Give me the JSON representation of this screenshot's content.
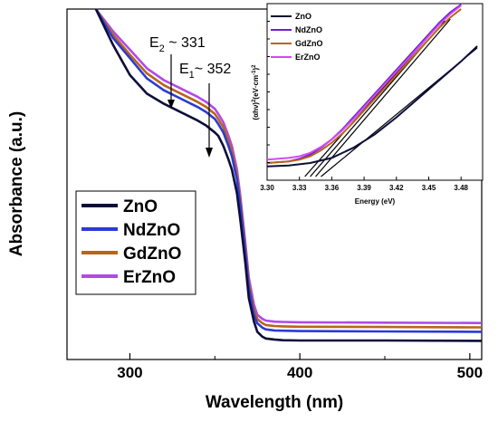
{
  "chart_data": [
    {
      "type": "line",
      "xlabel": "Wavelength (nm)",
      "ylabel": "Absorbance (a.u.)",
      "xlim": [
        263,
        507
      ],
      "ylim": [
        0,
        1
      ],
      "xticks": [
        "300",
        "400",
        "500"
      ],
      "y_tick_labels_shown": false,
      "legend_position": "bottom-left",
      "series": [
        {
          "name": "ZnO",
          "color": "#0d0d3a",
          "x": [
            280,
            290,
            300,
            310,
            320,
            330,
            340,
            345,
            350,
            352,
            355,
            358,
            360,
            363,
            365,
            368,
            370,
            373,
            375,
            378,
            380,
            385,
            390,
            400,
            450,
            507
          ],
          "y": [
            1.01,
            0.9,
            0.81,
            0.755,
            0.725,
            0.7,
            0.675,
            0.66,
            0.64,
            0.63,
            0.6,
            0.56,
            0.53,
            0.46,
            0.38,
            0.25,
            0.15,
            0.08,
            0.05,
            0.035,
            0.03,
            0.027,
            0.025,
            0.024,
            0.024,
            0.023
          ]
        },
        {
          "name": "NdZnO",
          "color": "#2b3bd6",
          "x": [
            280,
            290,
            300,
            310,
            320,
            330,
            340,
            345,
            350,
            352,
            355,
            358,
            360,
            363,
            365,
            368,
            370,
            373,
            375,
            378,
            380,
            385,
            390,
            400,
            450,
            507
          ],
          "y": [
            1.01,
            0.92,
            0.86,
            0.8,
            0.765,
            0.74,
            0.715,
            0.7,
            0.68,
            0.665,
            0.64,
            0.6,
            0.57,
            0.5,
            0.42,
            0.28,
            0.18,
            0.1,
            0.075,
            0.062,
            0.057,
            0.054,
            0.053,
            0.052,
            0.051,
            0.05
          ]
        },
        {
          "name": "GdZnO",
          "color": "#b8651a",
          "x": [
            280,
            290,
            300,
            310,
            320,
            330,
            340,
            345,
            350,
            352,
            355,
            358,
            360,
            363,
            365,
            368,
            370,
            373,
            375,
            378,
            380,
            385,
            390,
            400,
            450,
            507
          ],
          "y": [
            1.01,
            0.93,
            0.87,
            0.815,
            0.78,
            0.755,
            0.73,
            0.715,
            0.695,
            0.68,
            0.655,
            0.615,
            0.585,
            0.515,
            0.435,
            0.295,
            0.195,
            0.115,
            0.088,
            0.075,
            0.07,
            0.067,
            0.066,
            0.065,
            0.064,
            0.063
          ]
        },
        {
          "name": "ErZnO",
          "color": "#b04ae6",
          "x": [
            280,
            290,
            300,
            310,
            320,
            330,
            340,
            345,
            350,
            352,
            355,
            358,
            360,
            363,
            365,
            368,
            370,
            373,
            375,
            378,
            380,
            385,
            390,
            400,
            450,
            507
          ],
          "y": [
            1.01,
            0.94,
            0.885,
            0.83,
            0.795,
            0.77,
            0.745,
            0.73,
            0.71,
            0.695,
            0.67,
            0.63,
            0.6,
            0.53,
            0.45,
            0.31,
            0.21,
            0.13,
            0.1,
            0.088,
            0.083,
            0.08,
            0.079,
            0.078,
            0.077,
            0.076
          ]
        }
      ],
      "annotations": [
        {
          "label_main": "E",
          "label_sub": "2",
          "label_rest": " ~ 331",
          "x": 331,
          "y": 0.7
        },
        {
          "label_main": "E",
          "label_sub": "1",
          "label_rest": "~ 352",
          "x": 352,
          "y": 0.63
        }
      ]
    },
    {
      "type": "line",
      "xlabel": "Energy (eV)",
      "ylabel_parts": [
        "(αhν)",
        "2",
        "(eV·cm",
        "-1",
        ")",
        "2"
      ],
      "xlim": [
        3.3,
        3.5
      ],
      "ylim": [
        0,
        1
      ],
      "xticks": [
        "3.30",
        "3.33",
        "3.36",
        "3.39",
        "3.42",
        "3.45",
        "3.48"
      ],
      "xtick_values": [
        3.3,
        3.33,
        3.36,
        3.39,
        3.42,
        3.45,
        3.48
      ],
      "legend_position": "top-left",
      "series": [
        {
          "name": "ZnO",
          "color": "#0d0d3a",
          "x": [
            3.3,
            3.32,
            3.34,
            3.36,
            3.38,
            3.4,
            3.42,
            3.44,
            3.46,
            3.48,
            3.495
          ],
          "y": [
            0.06,
            0.065,
            0.08,
            0.11,
            0.17,
            0.25,
            0.35,
            0.46,
            0.57,
            0.68,
            0.77
          ]
        },
        {
          "name": "NdZnO",
          "color": "#6b1fd6",
          "x": [
            3.3,
            3.32,
            3.33,
            3.34,
            3.35,
            3.36,
            3.37,
            3.38,
            3.39,
            3.4,
            3.41,
            3.42,
            3.43,
            3.44,
            3.45,
            3.46,
            3.47,
            3.48
          ],
          "y": [
            0.08,
            0.09,
            0.105,
            0.13,
            0.17,
            0.22,
            0.28,
            0.35,
            0.42,
            0.49,
            0.56,
            0.63,
            0.7,
            0.77,
            0.84,
            0.91,
            0.97,
            1.02
          ]
        },
        {
          "name": "GdZnO",
          "color": "#b8651a",
          "x": [
            3.3,
            3.32,
            3.33,
            3.34,
            3.35,
            3.36,
            3.37,
            3.38,
            3.39,
            3.4,
            3.41,
            3.42,
            3.43,
            3.44,
            3.45,
            3.46,
            3.47,
            3.48
          ],
          "y": [
            0.08,
            0.09,
            0.1,
            0.12,
            0.155,
            0.2,
            0.255,
            0.32,
            0.39,
            0.46,
            0.53,
            0.6,
            0.67,
            0.74,
            0.81,
            0.88,
            0.94,
            0.99
          ]
        },
        {
          "name": "ErZnO",
          "color": "#d24af0",
          "x": [
            3.3,
            3.32,
            3.33,
            3.34,
            3.35,
            3.36,
            3.37,
            3.38,
            3.39,
            3.4,
            3.41,
            3.42,
            3.43,
            3.44,
            3.45,
            3.46,
            3.47,
            3.48
          ],
          "y": [
            0.1,
            0.11,
            0.12,
            0.14,
            0.175,
            0.22,
            0.275,
            0.34,
            0.41,
            0.48,
            0.55,
            0.62,
            0.69,
            0.76,
            0.83,
            0.9,
            0.96,
            1.01
          ]
        }
      ],
      "tangent_lines": [
        {
          "x": [
            3.335,
            3.46
          ],
          "y": [
            0.0,
            0.9
          ]
        },
        {
          "x": [
            3.34,
            3.465
          ],
          "y": [
            0.0,
            0.92
          ]
        },
        {
          "x": [
            3.345,
            3.47
          ],
          "y": [
            0.0,
            0.93
          ]
        },
        {
          "x": [
            3.35,
            3.495
          ],
          "y": [
            0.0,
            0.76
          ]
        }
      ]
    }
  ]
}
